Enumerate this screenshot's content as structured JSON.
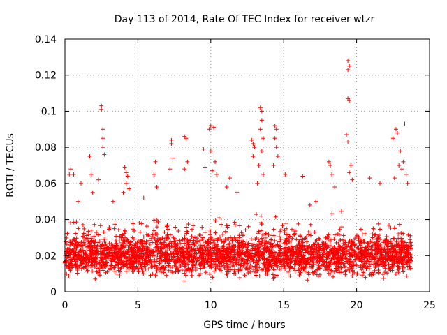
{
  "chart_data": {
    "type": "scatter",
    "title": "Day 113 of 2014, Rate Of TEC Index for receiver wtzr",
    "xlabel": "GPS time / hours",
    "ylabel": "ROTI / TECUs",
    "xlim": [
      0,
      25
    ],
    "ylim": [
      0,
      0.14
    ],
    "xticks": [
      "0",
      "5",
      "10",
      "15",
      "20",
      "25"
    ],
    "yticks": [
      "0",
      "0.02",
      "0.04",
      "0.06",
      "0.08",
      "0.1",
      "0.12",
      "0.14"
    ],
    "grid": true,
    "marker": "+",
    "color": "#ff0000",
    "points": [
      [
        0.3,
        0.065
      ],
      [
        0.4,
        0.068
      ],
      [
        0.6,
        0.065
      ],
      [
        1.1,
        0.06
      ],
      [
        1.7,
        0.075
      ],
      [
        1.8,
        0.065
      ],
      [
        1.9,
        0.055
      ],
      [
        2.5,
        0.103
      ],
      [
        2.5,
        0.101
      ],
      [
        2.6,
        0.09
      ],
      [
        2.6,
        0.085
      ],
      [
        2.6,
        0.08
      ],
      [
        2.7,
        0.076
      ],
      [
        2.3,
        0.062
      ],
      [
        4.1,
        0.069
      ],
      [
        4.2,
        0.066
      ],
      [
        4.3,
        0.064
      ],
      [
        4.2,
        0.06
      ],
      [
        4.4,
        0.057
      ],
      [
        4.0,
        0.055
      ],
      [
        6.2,
        0.072
      ],
      [
        6.1,
        0.065
      ],
      [
        6.3,
        0.058
      ],
      [
        7.3,
        0.084
      ],
      [
        7.3,
        0.082
      ],
      [
        7.4,
        0.074
      ],
      [
        7.2,
        0.068
      ],
      [
        8.2,
        0.086
      ],
      [
        8.3,
        0.085
      ],
      [
        8.4,
        0.072
      ],
      [
        8.2,
        0.068
      ],
      [
        9.5,
        0.079
      ],
      [
        9.6,
        0.069
      ],
      [
        9.9,
        0.09
      ],
      [
        10.0,
        0.092
      ],
      [
        10.2,
        0.091
      ],
      [
        10.0,
        0.078
      ],
      [
        10.3,
        0.072
      ],
      [
        10.1,
        0.067
      ],
      [
        10.4,
        0.065
      ],
      [
        12.8,
        0.084
      ],
      [
        12.9,
        0.082
      ],
      [
        13.0,
        0.08
      ],
      [
        12.9,
        0.075
      ],
      [
        13.2,
        0.06
      ],
      [
        13.4,
        0.102
      ],
      [
        13.5,
        0.1
      ],
      [
        13.5,
        0.095
      ],
      [
        13.4,
        0.09
      ],
      [
        13.6,
        0.085
      ],
      [
        13.5,
        0.078
      ],
      [
        13.3,
        0.07
      ],
      [
        13.6,
        0.065
      ],
      [
        14.4,
        0.092
      ],
      [
        14.5,
        0.09
      ],
      [
        14.4,
        0.085
      ],
      [
        14.5,
        0.08
      ],
      [
        14.6,
        0.075
      ],
      [
        14.3,
        0.07
      ],
      [
        15.1,
        0.065
      ],
      [
        18.1,
        0.072
      ],
      [
        18.2,
        0.07
      ],
      [
        18.3,
        0.065
      ],
      [
        18.5,
        0.058
      ],
      [
        19.4,
        0.128
      ],
      [
        19.5,
        0.125
      ],
      [
        19.4,
        0.123
      ],
      [
        19.4,
        0.107
      ],
      [
        19.5,
        0.106
      ],
      [
        19.3,
        0.087
      ],
      [
        19.4,
        0.083
      ],
      [
        19.6,
        0.07
      ],
      [
        19.5,
        0.066
      ],
      [
        19.7,
        0.062
      ],
      [
        22.7,
        0.09
      ],
      [
        22.8,
        0.088
      ],
      [
        22.5,
        0.085
      ],
      [
        23.3,
        0.093
      ],
      [
        23.0,
        0.078
      ],
      [
        23.2,
        0.072
      ],
      [
        22.9,
        0.07
      ],
      [
        23.1,
        0.068
      ],
      [
        23.4,
        0.065
      ],
      [
        22.6,
        0.063
      ],
      [
        23.5,
        0.06
      ],
      [
        20.9,
        0.063
      ],
      [
        21.6,
        0.06
      ],
      [
        16.3,
        0.064
      ],
      [
        17.2,
        0.05
      ],
      [
        16.8,
        0.048
      ],
      [
        11.3,
        0.063
      ],
      [
        11.1,
        0.058
      ],
      [
        5.4,
        0.052
      ],
      [
        3.3,
        0.05
      ],
      [
        0.9,
        0.05
      ],
      [
        11.8,
        0.055
      ]
    ],
    "band": {
      "x_range": [
        0,
        23.8
      ],
      "y_typical": [
        0.005,
        0.035
      ],
      "y_center": 0.017,
      "note": "dense cloud of points between 0.005 and 0.035 across the whole day"
    }
  }
}
